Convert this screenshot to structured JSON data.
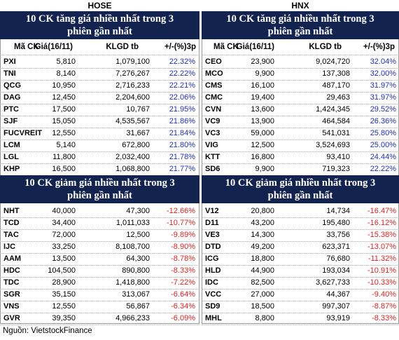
{
  "panels": [
    {
      "exchange": "HOSE",
      "gainers": {
        "title": "10 CK tăng giá nhiều nhất trong 3 phiên gần nhất",
        "columns": [
          "Mã CK",
          "Giá(16/11)",
          "KLGD tb",
          "+/-(%)3p"
        ],
        "rows": [
          [
            "PXI",
            "5,810",
            "1,079,100",
            "22.32%"
          ],
          [
            "TNI",
            "8,140",
            "7,276,267",
            "22.22%"
          ],
          [
            "QCG",
            "10,950",
            "2,716,233",
            "22.21%"
          ],
          [
            "DAG",
            "12,450",
            "2,204,600",
            "22.06%"
          ],
          [
            "PTC",
            "17,500",
            "10,767",
            "21.95%"
          ],
          [
            "SJF",
            "15,050",
            "4,535,567",
            "21.86%"
          ],
          [
            "FUCVREIT",
            "12,550",
            "31,667",
            "21.84%"
          ],
          [
            "LCM",
            "5,140",
            "672,800",
            "21.80%"
          ],
          [
            "LGL",
            "11,800",
            "2,032,400",
            "21.78%"
          ],
          [
            "KHP",
            "16,500",
            "1,068,800",
            "21.77%"
          ]
        ]
      },
      "losers": {
        "title": "10 CK giảm giá nhiều nhất trong 3 phiên gần nhất",
        "rows": [
          [
            "NHT",
            "40,000",
            "47,300",
            "-12.66%"
          ],
          [
            "TCD",
            "34,400",
            "1,011,033",
            "-10.77%"
          ],
          [
            "TAC",
            "72,000",
            "12,500",
            "-9.89%"
          ],
          [
            "IJC",
            "33,250",
            "8,108,700",
            "-8.90%"
          ],
          [
            "AAM",
            "13,500",
            "64,300",
            "-8.78%"
          ],
          [
            "HDC",
            "104,500",
            "890,800",
            "-8.33%"
          ],
          [
            "TDC",
            "28,900",
            "1,418,800",
            "-7.22%"
          ],
          [
            "SGR",
            "35,150",
            "313,067",
            "-6.64%"
          ],
          [
            "VNS",
            "12,550",
            "56,867",
            "-6.34%"
          ],
          [
            "GVR",
            "39,350",
            "4,966,233",
            "-6.09%"
          ]
        ]
      }
    },
    {
      "exchange": "HNX",
      "gainers": {
        "title": "10 CK tăng giá nhiều nhất trong 3 phiên gần nhất",
        "columns": [
          "Mã CK",
          "Giá(16/11)",
          "KLGD tb",
          "+/-(%)3p"
        ],
        "rows": [
          [
            "CEO",
            "23,900",
            "9,024,720",
            "32.04%"
          ],
          [
            "MCO",
            "9,900",
            "137,308",
            "32.00%"
          ],
          [
            "CMS",
            "16,100",
            "487,170",
            "31.97%"
          ],
          [
            "CMC",
            "19,400",
            "29,463",
            "31.97%"
          ],
          [
            "CVN",
            "13,600",
            "1,424,345",
            "29.52%"
          ],
          [
            "VC9",
            "13,900",
            "464,584",
            "26.36%"
          ],
          [
            "VC3",
            "59,000",
            "541,031",
            "25.80%"
          ],
          [
            "VIG",
            "12,500",
            "3,524,693",
            "25.00%"
          ],
          [
            "KTT",
            "16,800",
            "93,410",
            "24.44%"
          ],
          [
            "SD6",
            "9,900",
            "719,323",
            "22.22%"
          ]
        ]
      },
      "losers": {
        "title": "10 CK giảm giá nhiều nhất trong 3 phiên gần nhất",
        "rows": [
          [
            "V12",
            "20,800",
            "14,734",
            "-16.47%"
          ],
          [
            "D11",
            "43,200",
            "195,480",
            "-16.12%"
          ],
          [
            "VE3",
            "14,300",
            "33,756",
            "-15.38%"
          ],
          [
            "DTD",
            "49,200",
            "623,371",
            "-13.07%"
          ],
          [
            "ICG",
            "18,800",
            "76,680",
            "-11.32%"
          ],
          [
            "HLD",
            "44,900",
            "193,034",
            "-10.91%"
          ],
          [
            "IDC",
            "82,500",
            "3,627,733",
            "-10.33%"
          ],
          [
            "VCC",
            "27,000",
            "44,367",
            "-9.40%"
          ],
          [
            "SD9",
            "18,500",
            "997,307",
            "-8.87%"
          ],
          [
            "MHL",
            "8,800",
            "93,919",
            "-8.33%"
          ]
        ]
      }
    }
  ],
  "source": "Nguồn: VietstockFinance"
}
